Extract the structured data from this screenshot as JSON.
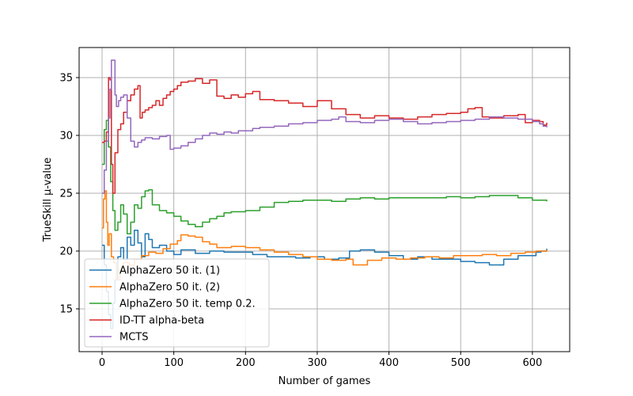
{
  "chart_data": {
    "type": "line",
    "title": "",
    "xlabel": "Number of games",
    "ylabel": "TrueSkill µ-value",
    "xlim": [
      -32,
      652
    ],
    "ylim": [
      11.3,
      37.6
    ],
    "xticks": [
      0,
      100,
      200,
      300,
      400,
      500,
      600
    ],
    "yticks": [
      15,
      20,
      25,
      30,
      35
    ],
    "grid": true,
    "legend_position": "lower-left",
    "series": [
      {
        "name": "AlphaZero 50 it. (1)",
        "color": "#1f77b4",
        "points": [
          [
            0,
            20.5
          ],
          [
            3,
            18.8
          ],
          [
            6,
            16.5
          ],
          [
            9,
            14.5
          ],
          [
            12,
            13.3
          ],
          [
            15,
            15.5
          ],
          [
            18,
            17.5
          ],
          [
            22,
            19.5
          ],
          [
            26,
            20.3
          ],
          [
            30,
            19.3
          ],
          [
            35,
            21.2
          ],
          [
            40,
            20.5
          ],
          [
            45,
            21.8
          ],
          [
            50,
            20.7
          ],
          [
            55,
            19.5
          ],
          [
            60,
            21.5
          ],
          [
            65,
            21.0
          ],
          [
            70,
            20.3
          ],
          [
            80,
            20.5
          ],
          [
            90,
            20.0
          ],
          [
            100,
            19.7
          ],
          [
            110,
            20.1
          ],
          [
            130,
            19.8
          ],
          [
            150,
            20.0
          ],
          [
            170,
            19.9
          ],
          [
            190,
            19.9
          ],
          [
            210,
            19.7
          ],
          [
            230,
            19.5
          ],
          [
            250,
            19.5
          ],
          [
            270,
            19.4
          ],
          [
            290,
            19.5
          ],
          [
            310,
            19.3
          ],
          [
            330,
            19.4
          ],
          [
            345,
            20.0
          ],
          [
            360,
            20.1
          ],
          [
            380,
            19.9
          ],
          [
            400,
            19.6
          ],
          [
            420,
            19.3
          ],
          [
            440,
            19.5
          ],
          [
            460,
            19.3
          ],
          [
            480,
            19.3
          ],
          [
            500,
            19.1
          ],
          [
            520,
            19.0
          ],
          [
            540,
            18.8
          ],
          [
            560,
            19.3
          ],
          [
            580,
            19.6
          ],
          [
            595,
            19.6
          ],
          [
            605,
            19.9
          ],
          [
            612,
            20.0
          ],
          [
            620,
            20.2
          ]
        ]
      },
      {
        "name": "AlphaZero 50 it. (2)",
        "color": "#ff7f0e",
        "points": [
          [
            0,
            22.0
          ],
          [
            2,
            24.5
          ],
          [
            4,
            25.2
          ],
          [
            6,
            22.5
          ],
          [
            8,
            20.5
          ],
          [
            10,
            21.5
          ],
          [
            13,
            19.5
          ],
          [
            16,
            19.0
          ],
          [
            20,
            17.5
          ],
          [
            25,
            18.5
          ],
          [
            30,
            19.0
          ],
          [
            38,
            18.8
          ],
          [
            45,
            19.3
          ],
          [
            55,
            19.6
          ],
          [
            65,
            19.9
          ],
          [
            75,
            19.8
          ],
          [
            85,
            20.2
          ],
          [
            95,
            20.6
          ],
          [
            105,
            20.9
          ],
          [
            110,
            21.4
          ],
          [
            120,
            21.3
          ],
          [
            130,
            21.2
          ],
          [
            140,
            20.8
          ],
          [
            150,
            20.6
          ],
          [
            160,
            20.3
          ],
          [
            180,
            20.4
          ],
          [
            200,
            20.3
          ],
          [
            220,
            20.1
          ],
          [
            240,
            19.9
          ],
          [
            260,
            19.7
          ],
          [
            280,
            19.5
          ],
          [
            300,
            19.3
          ],
          [
            320,
            19.2
          ],
          [
            340,
            19.3
          ],
          [
            350,
            18.8
          ],
          [
            370,
            19.2
          ],
          [
            390,
            19.4
          ],
          [
            410,
            19.3
          ],
          [
            430,
            19.4
          ],
          [
            450,
            19.5
          ],
          [
            470,
            19.4
          ],
          [
            490,
            19.6
          ],
          [
            510,
            19.6
          ],
          [
            530,
            19.7
          ],
          [
            550,
            19.6
          ],
          [
            570,
            19.8
          ],
          [
            590,
            19.9
          ],
          [
            605,
            20.0
          ],
          [
            620,
            20.1
          ]
        ]
      },
      {
        "name": "AlphaZero 50 it. temp 0.2.",
        "color": "#2ca02c",
        "points": [
          [
            0,
            27.5
          ],
          [
            3,
            30.5
          ],
          [
            6,
            31.3
          ],
          [
            9,
            29.0
          ],
          [
            12,
            26.0
          ],
          [
            15,
            23.5
          ],
          [
            18,
            21.8
          ],
          [
            22,
            22.5
          ],
          [
            26,
            24.0
          ],
          [
            30,
            23.2
          ],
          [
            35,
            21.5
          ],
          [
            40,
            22.5
          ],
          [
            45,
            24.0
          ],
          [
            50,
            23.7
          ],
          [
            55,
            24.7
          ],
          [
            60,
            25.2
          ],
          [
            65,
            25.3
          ],
          [
            70,
            24.0
          ],
          [
            80,
            23.5
          ],
          [
            90,
            23.3
          ],
          [
            100,
            23.0
          ],
          [
            110,
            22.6
          ],
          [
            120,
            22.3
          ],
          [
            130,
            22.1
          ],
          [
            140,
            22.5
          ],
          [
            150,
            22.8
          ],
          [
            160,
            23.0
          ],
          [
            170,
            23.3
          ],
          [
            180,
            23.4
          ],
          [
            200,
            23.5
          ],
          [
            220,
            23.8
          ],
          [
            240,
            24.2
          ],
          [
            260,
            24.3
          ],
          [
            280,
            24.4
          ],
          [
            300,
            24.4
          ],
          [
            320,
            24.3
          ],
          [
            340,
            24.5
          ],
          [
            360,
            24.6
          ],
          [
            380,
            24.5
          ],
          [
            400,
            24.6
          ],
          [
            420,
            24.6
          ],
          [
            440,
            24.6
          ],
          [
            460,
            24.6
          ],
          [
            480,
            24.7
          ],
          [
            500,
            24.6
          ],
          [
            520,
            24.7
          ],
          [
            540,
            24.8
          ],
          [
            560,
            24.8
          ],
          [
            580,
            24.6
          ],
          [
            600,
            24.4
          ],
          [
            620,
            24.3
          ]
        ]
      },
      {
        "name": "ID-TT alpha-beta",
        "color": "#d62728",
        "points": [
          [
            0,
            29.4
          ],
          [
            3,
            29.5
          ],
          [
            6,
            30.3
          ],
          [
            9,
            35.0
          ],
          [
            11,
            34.8
          ],
          [
            13,
            27.5
          ],
          [
            15,
            25.0
          ],
          [
            18,
            28.5
          ],
          [
            22,
            30.5
          ],
          [
            26,
            31.0
          ],
          [
            30,
            32.0
          ],
          [
            35,
            33.0
          ],
          [
            40,
            33.5
          ],
          [
            45,
            34.0
          ],
          [
            50,
            34.3
          ],
          [
            53,
            31.5
          ],
          [
            56,
            32.0
          ],
          [
            60,
            32.2
          ],
          [
            65,
            32.4
          ],
          [
            70,
            32.6
          ],
          [
            75,
            33.0
          ],
          [
            80,
            32.6
          ],
          [
            85,
            33.2
          ],
          [
            90,
            33.5
          ],
          [
            95,
            33.8
          ],
          [
            100,
            34.0
          ],
          [
            105,
            34.3
          ],
          [
            110,
            34.6
          ],
          [
            120,
            34.7
          ],
          [
            130,
            34.9
          ],
          [
            140,
            34.5
          ],
          [
            150,
            34.8
          ],
          [
            160,
            33.4
          ],
          [
            170,
            33.2
          ],
          [
            180,
            33.5
          ],
          [
            190,
            33.3
          ],
          [
            200,
            33.6
          ],
          [
            210,
            33.8
          ],
          [
            220,
            33.1
          ],
          [
            240,
            33.0
          ],
          [
            260,
            32.8
          ],
          [
            280,
            32.5
          ],
          [
            300,
            33.0
          ],
          [
            320,
            32.3
          ],
          [
            340,
            31.8
          ],
          [
            360,
            31.5
          ],
          [
            380,
            31.7
          ],
          [
            400,
            31.5
          ],
          [
            420,
            31.4
          ],
          [
            440,
            31.6
          ],
          [
            460,
            31.8
          ],
          [
            480,
            31.9
          ],
          [
            500,
            32.0
          ],
          [
            510,
            32.3
          ],
          [
            520,
            32.4
          ],
          [
            530,
            31.6
          ],
          [
            540,
            31.5
          ],
          [
            560,
            31.7
          ],
          [
            580,
            31.8
          ],
          [
            590,
            31.1
          ],
          [
            600,
            31.3
          ],
          [
            610,
            31.2
          ],
          [
            615,
            30.9
          ],
          [
            620,
            31.1
          ]
        ]
      },
      {
        "name": "MCTS",
        "color": "#9467bd",
        "points": [
          [
            0,
            25.0
          ],
          [
            3,
            27.0
          ],
          [
            6,
            29.5
          ],
          [
            9,
            31.5
          ],
          [
            11,
            34.0
          ],
          [
            13,
            36.5
          ],
          [
            16,
            36.5
          ],
          [
            18,
            33.5
          ],
          [
            20,
            32.5
          ],
          [
            23,
            33.0
          ],
          [
            26,
            33.3
          ],
          [
            30,
            33.5
          ],
          [
            35,
            31.5
          ],
          [
            40,
            29.5
          ],
          [
            45,
            29.0
          ],
          [
            50,
            29.4
          ],
          [
            55,
            29.6
          ],
          [
            60,
            29.8
          ],
          [
            70,
            29.7
          ],
          [
            80,
            29.9
          ],
          [
            90,
            30.0
          ],
          [
            95,
            28.8
          ],
          [
            100,
            28.9
          ],
          [
            110,
            29.1
          ],
          [
            120,
            29.4
          ],
          [
            130,
            29.7
          ],
          [
            140,
            30.0
          ],
          [
            150,
            30.2
          ],
          [
            160,
            30.1
          ],
          [
            170,
            30.3
          ],
          [
            180,
            30.2
          ],
          [
            190,
            30.4
          ],
          [
            200,
            30.4
          ],
          [
            210,
            30.6
          ],
          [
            220,
            30.7
          ],
          [
            240,
            30.8
          ],
          [
            260,
            31.0
          ],
          [
            280,
            31.1
          ],
          [
            300,
            31.3
          ],
          [
            320,
            31.4
          ],
          [
            330,
            31.6
          ],
          [
            340,
            31.2
          ],
          [
            360,
            31.1
          ],
          [
            380,
            31.3
          ],
          [
            400,
            31.4
          ],
          [
            420,
            31.2
          ],
          [
            440,
            31.0
          ],
          [
            460,
            31.1
          ],
          [
            480,
            31.2
          ],
          [
            500,
            31.3
          ],
          [
            520,
            31.4
          ],
          [
            540,
            31.6
          ],
          [
            560,
            31.5
          ],
          [
            570,
            31.5
          ],
          [
            580,
            31.4
          ],
          [
            600,
            31.2
          ],
          [
            610,
            31.0
          ],
          [
            615,
            30.8
          ],
          [
            620,
            30.7
          ]
        ]
      }
    ]
  }
}
